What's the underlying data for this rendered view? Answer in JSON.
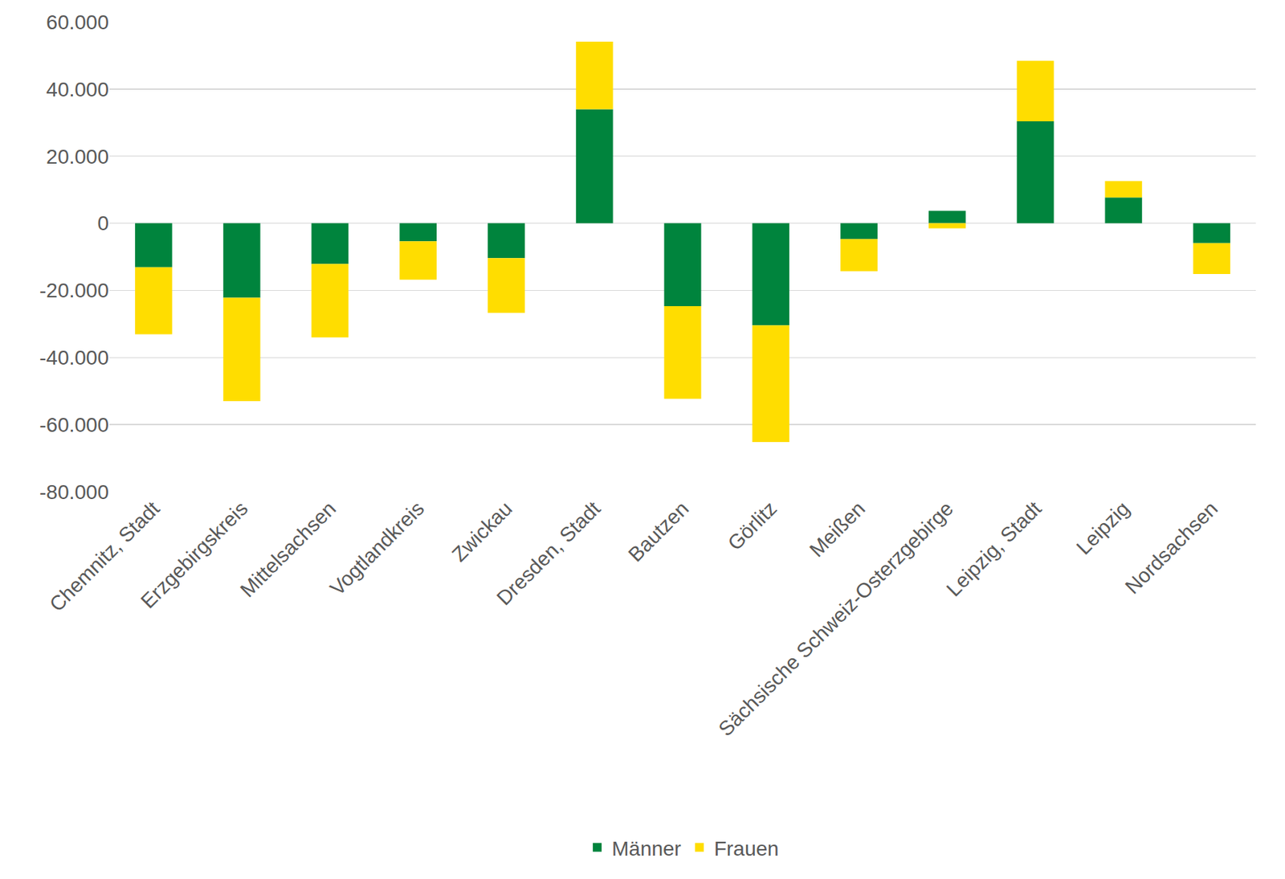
{
  "chart_data": {
    "type": "bar",
    "stacked": true,
    "categories": [
      "Chemnitz, Stadt",
      "Erzgebirgskreis",
      "Mittelsachsen",
      "Vogtlandkreis",
      "Zwickau",
      "Dresden, Stadt",
      "Bautzen",
      "Görlitz",
      "Meißen",
      "Sächsische Schweiz-Osterzgebirge",
      "Leipzig, Stadt",
      "Leipzig",
      "Nordsachsen"
    ],
    "series": [
      {
        "name": "Männer",
        "color": "#00843d",
        "values": [
          -13100,
          -22200,
          -12100,
          -5400,
          -10400,
          34000,
          -24700,
          -30400,
          -4700,
          3700,
          30400,
          7700,
          -5900
        ]
      },
      {
        "name": "Frauen",
        "color": "#ffdd00",
        "values": [
          -20000,
          -30800,
          -21900,
          -11400,
          -16300,
          20100,
          -27600,
          -34800,
          -9600,
          -1500,
          18000,
          4900,
          -9200
        ]
      }
    ],
    "ylim": [
      -80000,
      60000
    ],
    "yticks": [
      {
        "value": -80000,
        "label": "-80.000"
      },
      {
        "value": -60000,
        "label": "-60.000"
      },
      {
        "value": -40000,
        "label": "-40.000"
      },
      {
        "value": -20000,
        "label": "-20.000"
      },
      0,
      {
        "value": 20000,
        "label": "20.000"
      },
      {
        "value": 40000,
        "label": "40.000"
      },
      {
        "value": 60000,
        "label": "60.000"
      }
    ],
    "grid": true,
    "legend": "bottom"
  }
}
